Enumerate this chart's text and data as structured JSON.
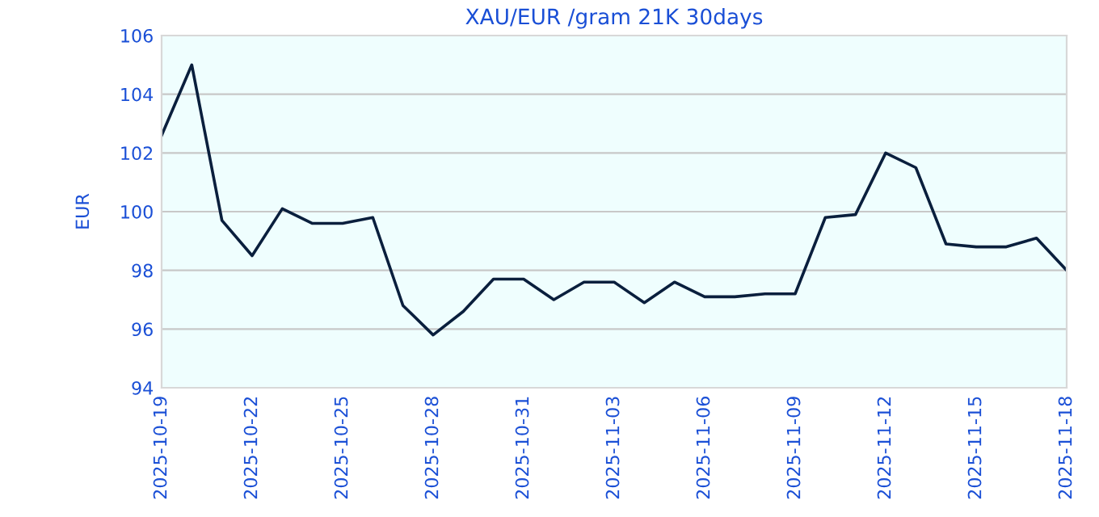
{
  "chart_data": {
    "type": "line",
    "title": "XAU/EUR /gram 21K 30days",
    "ylabel": "EUR",
    "x": [
      "2025-10-19",
      "2025-10-20",
      "2025-10-21",
      "2025-10-22",
      "2025-10-23",
      "2025-10-24",
      "2025-10-25",
      "2025-10-26",
      "2025-10-27",
      "2025-10-28",
      "2025-10-29",
      "2025-10-30",
      "2025-10-31",
      "2025-11-01",
      "2025-11-02",
      "2025-11-03",
      "2025-11-04",
      "2025-11-05",
      "2025-11-06",
      "2025-11-07",
      "2025-11-08",
      "2025-11-09",
      "2025-11-10",
      "2025-11-11",
      "2025-11-12",
      "2025-11-13",
      "2025-11-14",
      "2025-11-15",
      "2025-11-16",
      "2025-11-17",
      "2025-11-18"
    ],
    "series": [
      {
        "color": "#0a1f3d",
        "values": [
          102.6,
          105.0,
          99.7,
          98.5,
          100.1,
          99.6,
          99.6,
          99.8,
          96.8,
          95.8,
          96.6,
          97.7,
          97.7,
          97.0,
          97.6,
          97.6,
          96.9,
          97.6,
          97.1,
          97.1,
          97.2,
          97.2,
          99.8,
          99.9,
          102.0,
          101.5,
          98.9,
          98.8,
          98.8,
          99.1,
          98.0
        ]
      }
    ],
    "xlim": [
      "2025-10-19",
      "2025-11-18"
    ],
    "xticks": [
      "2025-10-19",
      "2025-10-22",
      "2025-10-25",
      "2025-10-28",
      "2025-10-31",
      "2025-11-03",
      "2025-11-06",
      "2025-11-09",
      "2025-11-12",
      "2025-11-15",
      "2025-11-18"
    ],
    "ylim": [
      94,
      106
    ],
    "yticks": [
      94,
      96,
      98,
      100,
      102,
      104,
      106
    ],
    "grid": "y",
    "legend": false,
    "marker": "none",
    "line_style": "solid"
  }
}
